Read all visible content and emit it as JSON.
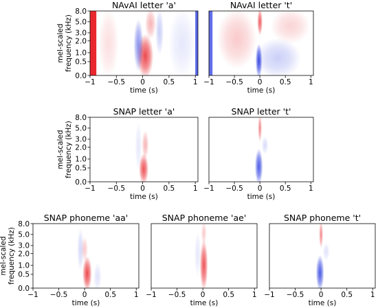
{
  "figure": {
    "tick_values_y_labels": [
      "0.0",
      "0.5",
      "1.0",
      "2.0",
      "3.0",
      "5.0",
      "8.0"
    ],
    "tick_values_x_labels": [
      "−1",
      "−0.5",
      "0",
      "0.5",
      "1"
    ]
  },
  "chart_data": [
    {
      "type": "heatmap",
      "title": "NAvAI letter 'a'",
      "xlabel": "time (s)",
      "ylabel": "mel-scaled frequency (kHz)",
      "xlim": [
        -1.0,
        1.05
      ],
      "ylim_kHz": [
        0.0,
        8.0
      ],
      "x_ticks": [
        -1,
        -0.5,
        0,
        0.5,
        1
      ],
      "y_ticks_kHz": [
        0.0,
        0.5,
        1.0,
        2.0,
        3.0,
        5.0,
        8.0
      ],
      "colors": {
        "positive": "#e8282e",
        "negative": "#2c3ee0",
        "zero": "#ffffff"
      },
      "features": [
        {
          "sign": "positive",
          "t": -0.96,
          "dt": 0.08,
          "f_low_kHz": 0.0,
          "f_high_kHz": 8.0,
          "intensity": 1.0,
          "style": "band"
        },
        {
          "sign": "negative",
          "t": 1.03,
          "dt": 0.03,
          "f_low_kHz": 0.0,
          "f_high_kHz": 8.0,
          "intensity": 0.8,
          "style": "band"
        },
        {
          "sign": "positive",
          "t": 0.05,
          "dt": 0.12,
          "f_low_kHz": 0.0,
          "f_high_kHz": 2.5,
          "intensity": 0.85,
          "style": "blob"
        },
        {
          "sign": "positive",
          "t": 0.15,
          "dt": 0.08,
          "f_low_kHz": 2.5,
          "f_high_kHz": 8.0,
          "intensity": 0.35,
          "style": "blob"
        },
        {
          "sign": "negative",
          "t": -0.08,
          "dt": 0.07,
          "f_low_kHz": 0.2,
          "f_high_kHz": 5.0,
          "intensity": 0.55,
          "style": "blob"
        },
        {
          "sign": "negative",
          "t": 0.32,
          "dt": 0.06,
          "f_low_kHz": 1.0,
          "f_high_kHz": 8.0,
          "intensity": 0.25,
          "style": "blob"
        },
        {
          "sign": "positive",
          "t": -0.65,
          "dt": 0.15,
          "f_low_kHz": 0.0,
          "f_high_kHz": 8.0,
          "intensity": 0.15,
          "style": "blob"
        },
        {
          "sign": "negative",
          "t": 0.75,
          "dt": 0.2,
          "f_low_kHz": 0.0,
          "f_high_kHz": 8.0,
          "intensity": 0.12,
          "style": "blob"
        }
      ]
    },
    {
      "type": "heatmap",
      "title": "NAvAI letter 't'",
      "xlabel": "time (s)",
      "ylabel": "",
      "xlim": [
        -1.0,
        1.05
      ],
      "ylim_kHz": [
        0.0,
        8.0
      ],
      "x_ticks": [
        -1,
        -0.5,
        0,
        0.5,
        1
      ],
      "y_ticks_kHz": [],
      "colors": {
        "positive": "#e8282e",
        "negative": "#2c3ee0",
        "zero": "#ffffff"
      },
      "features": [
        {
          "sign": "negative",
          "t": -0.97,
          "dt": 0.04,
          "f_low_kHz": 0.0,
          "f_high_kHz": 8.0,
          "intensity": 0.75,
          "style": "band"
        },
        {
          "sign": "negative",
          "t": -0.02,
          "dt": 0.05,
          "f_low_kHz": 0.0,
          "f_high_kHz": 1.5,
          "intensity": 0.95,
          "style": "blob"
        },
        {
          "sign": "positive",
          "t": 0.0,
          "dt": 0.04,
          "f_low_kHz": 3.0,
          "f_high_kHz": 8.0,
          "intensity": 0.75,
          "style": "blob"
        },
        {
          "sign": "positive",
          "t": -0.45,
          "dt": 0.3,
          "f_low_kHz": 0.3,
          "f_high_kHz": 8.0,
          "intensity": 0.25,
          "style": "blob"
        },
        {
          "sign": "negative",
          "t": 0.35,
          "dt": 0.35,
          "f_low_kHz": 0.0,
          "f_high_kHz": 2.0,
          "intensity": 0.25,
          "style": "blob"
        },
        {
          "sign": "positive",
          "t": 0.6,
          "dt": 0.3,
          "f_low_kHz": 2.0,
          "f_high_kHz": 8.0,
          "intensity": 0.2,
          "style": "blob"
        }
      ]
    },
    {
      "type": "heatmap",
      "title": "SNAP letter 'a'",
      "xlabel": "time (s)",
      "ylabel": "mel-scaled frequency (kHz)",
      "xlim": [
        -1.0,
        1.05
      ],
      "ylim_kHz": [
        0.0,
        8.0
      ],
      "x_ticks": [
        -1,
        -0.5,
        0,
        0.5,
        1
      ],
      "y_ticks_kHz": [
        0.0,
        0.5,
        1.0,
        2.0,
        3.0,
        5.0,
        8.0
      ],
      "colors": {
        "positive": "#e8282e",
        "negative": "#2c3ee0",
        "zero": "#ffffff"
      },
      "features": [
        {
          "sign": "positive",
          "t": 0.02,
          "dt": 0.07,
          "f_low_kHz": 0.0,
          "f_high_kHz": 1.2,
          "intensity": 0.8,
          "style": "blob"
        },
        {
          "sign": "positive",
          "t": 0.05,
          "dt": 0.05,
          "f_low_kHz": 1.2,
          "f_high_kHz": 4.0,
          "intensity": 0.35,
          "style": "blob"
        },
        {
          "sign": "negative",
          "t": -0.08,
          "dt": 0.05,
          "f_low_kHz": 0.5,
          "f_high_kHz": 6.0,
          "intensity": 0.12,
          "style": "blob"
        }
      ]
    },
    {
      "type": "heatmap",
      "title": "SNAP letter 't'",
      "xlabel": "time (s)",
      "ylabel": "",
      "xlim": [
        -1.0,
        1.05
      ],
      "ylim_kHz": [
        0.0,
        8.0
      ],
      "x_ticks": [
        -1,
        -0.5,
        0,
        0.5,
        1
      ],
      "y_ticks_kHz": [],
      "colors": {
        "positive": "#e8282e",
        "negative": "#2c3ee0",
        "zero": "#ffffff"
      },
      "features": [
        {
          "sign": "negative",
          "t": -0.02,
          "dt": 0.06,
          "f_low_kHz": 0.0,
          "f_high_kHz": 1.6,
          "intensity": 0.85,
          "style": "blob"
        },
        {
          "sign": "positive",
          "t": 0.0,
          "dt": 0.03,
          "f_low_kHz": 3.0,
          "f_high_kHz": 8.0,
          "intensity": 0.55,
          "style": "blob"
        },
        {
          "sign": "negative",
          "t": 0.1,
          "dt": 0.05,
          "f_low_kHz": 1.6,
          "f_high_kHz": 3.0,
          "intensity": 0.18,
          "style": "blob"
        }
      ]
    },
    {
      "type": "heatmap",
      "title": "SNAP phoneme 'aa'",
      "xlabel": "time (s)",
      "ylabel": "mel-scaled frequency (kHz)",
      "xlim": [
        -1.0,
        1.05
      ],
      "ylim_kHz": [
        0.0,
        8.0
      ],
      "x_ticks": [
        -1,
        -0.5,
        0,
        0.5,
        1
      ],
      "y_ticks_kHz": [
        0.0,
        0.5,
        1.0,
        2.0,
        3.0,
        5.0,
        8.0
      ],
      "colors": {
        "positive": "#e8282e",
        "negative": "#2c3ee0",
        "zero": "#ffffff"
      },
      "features": [
        {
          "sign": "positive",
          "t": 0.05,
          "dt": 0.07,
          "f_low_kHz": 0.0,
          "f_high_kHz": 1.5,
          "intensity": 0.85,
          "style": "blob"
        },
        {
          "sign": "positive",
          "t": 0.0,
          "dt": 0.05,
          "f_low_kHz": 1.5,
          "f_high_kHz": 4.0,
          "intensity": 0.25,
          "style": "blob"
        },
        {
          "sign": "negative",
          "t": -0.08,
          "dt": 0.05,
          "f_low_kHz": 0.8,
          "f_high_kHz": 6.0,
          "intensity": 0.2,
          "style": "blob"
        },
        {
          "sign": "negative",
          "t": 0.25,
          "dt": 0.06,
          "f_low_kHz": 0.0,
          "f_high_kHz": 1.0,
          "intensity": 0.15,
          "style": "blob"
        }
      ]
    },
    {
      "type": "heatmap",
      "title": "SNAP phoneme 'ae'",
      "xlabel": "time (s)",
      "ylabel": "",
      "xlim": [
        -1.0,
        1.05
      ],
      "ylim_kHz": [
        0.0,
        8.0
      ],
      "x_ticks": [
        -1,
        -0.5,
        0,
        0.5,
        1
      ],
      "y_ticks_kHz": [],
      "colors": {
        "positive": "#e8282e",
        "negative": "#2c3ee0",
        "zero": "#ffffff"
      },
      "features": [
        {
          "sign": "positive",
          "t": 0.02,
          "dt": 0.06,
          "f_low_kHz": 0.0,
          "f_high_kHz": 3.5,
          "intensity": 0.8,
          "style": "blob"
        },
        {
          "sign": "positive",
          "t": 0.02,
          "dt": 0.04,
          "f_low_kHz": 3.5,
          "f_high_kHz": 8.0,
          "intensity": 0.25,
          "style": "blob"
        },
        {
          "sign": "negative",
          "t": -0.1,
          "dt": 0.05,
          "f_low_kHz": 0.5,
          "f_high_kHz": 5.0,
          "intensity": 0.12,
          "style": "blob"
        }
      ]
    },
    {
      "type": "heatmap",
      "title": "SNAP phoneme 't'",
      "xlabel": "time (s)",
      "ylabel": "",
      "xlim": [
        -1.0,
        1.05
      ],
      "ylim_kHz": [
        0.0,
        8.0
      ],
      "x_ticks": [
        -1,
        -0.5,
        0,
        0.5,
        1
      ],
      "y_ticks_kHz": [],
      "colors": {
        "positive": "#e8282e",
        "negative": "#2c3ee0",
        "zero": "#ffffff"
      },
      "features": [
        {
          "sign": "negative",
          "t": -0.02,
          "dt": 0.06,
          "f_low_kHz": 0.0,
          "f_high_kHz": 1.6,
          "intensity": 0.85,
          "style": "blob"
        },
        {
          "sign": "positive",
          "t": 0.0,
          "dt": 0.03,
          "f_low_kHz": 3.0,
          "f_high_kHz": 8.0,
          "intensity": 0.55,
          "style": "blob"
        },
        {
          "sign": "negative",
          "t": 0.1,
          "dt": 0.05,
          "f_low_kHz": 1.6,
          "f_high_kHz": 3.0,
          "intensity": 0.15,
          "style": "blob"
        }
      ]
    }
  ]
}
